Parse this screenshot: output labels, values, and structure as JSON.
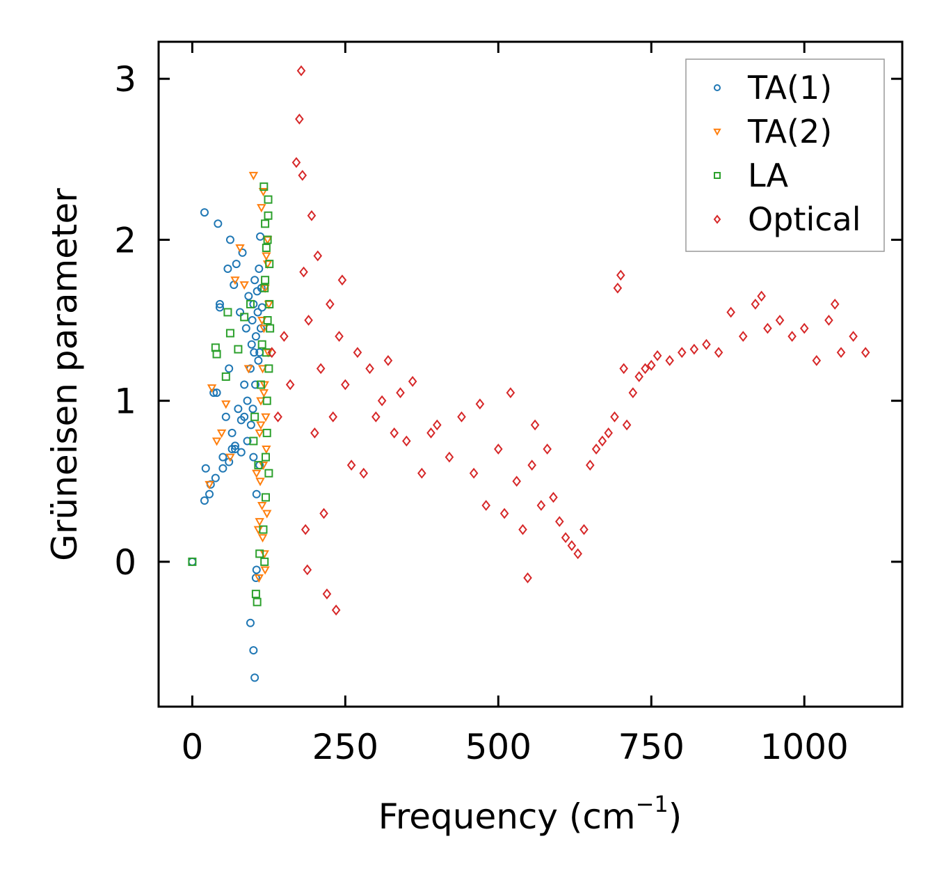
{
  "chart_data": {
    "type": "scatter",
    "title": "",
    "xlabel": "Frequency (cm",
    "xlabel_sup": "−1",
    "xlabel_close": ")",
    "ylabel": "Grüneisen parameter",
    "xlim": [
      -55,
      1160
    ],
    "ylim": [
      -0.9,
      3.23
    ],
    "xticks": [
      0,
      250,
      500,
      750,
      1000
    ],
    "xtick_labels": [
      "0",
      "250",
      "500",
      "750",
      "1000"
    ],
    "yticks": [
      0,
      1,
      2,
      3
    ],
    "ytick_labels": [
      "0",
      "1",
      "2",
      "3"
    ],
    "grid": false,
    "legend_position": "top-right",
    "series": [
      {
        "name": "TA(1)",
        "marker": "circle",
        "color": "#1f77b4",
        "x": [
          0,
          20,
          22,
          28,
          35,
          38,
          42,
          45,
          50,
          55,
          58,
          60,
          62,
          65,
          68,
          70,
          72,
          75,
          78,
          80,
          82,
          85,
          88,
          90,
          92,
          95,
          96,
          97,
          98,
          99,
          100,
          101,
          102,
          103,
          104,
          105,
          106,
          107,
          108,
          109,
          110,
          111,
          112,
          113,
          114,
          20,
          40,
          60,
          80,
          100,
          30,
          50,
          70,
          90,
          110,
          45,
          65,
          85,
          105,
          95,
          100,
          102,
          104
        ],
        "y": [
          0.0,
          2.17,
          0.58,
          0.42,
          1.05,
          0.52,
          2.1,
          1.6,
          0.58,
          0.9,
          1.82,
          0.62,
          2.0,
          0.8,
          1.72,
          0.7,
          1.85,
          0.95,
          1.55,
          0.68,
          1.92,
          1.1,
          1.45,
          0.75,
          1.65,
          1.2,
          0.85,
          1.35,
          1.5,
          0.95,
          1.6,
          1.3,
          1.75,
          1.1,
          1.4,
          0.42,
          1.68,
          1.55,
          1.25,
          1.82,
          0.6,
          2.02,
          1.45,
          1.7,
          1.58,
          0.38,
          1.05,
          1.2,
          0.88,
          0.65,
          0.48,
          0.65,
          0.72,
          1.0,
          1.3,
          1.58,
          0.7,
          0.9,
          -0.05,
          -0.38,
          -0.55,
          -0.72,
          -0.1
        ]
      },
      {
        "name": "TA(2)",
        "marker": "triangle-down",
        "color": "#ff7f0e",
        "x": [
          28,
          32,
          40,
          48,
          55,
          62,
          70,
          78,
          85,
          92,
          100,
          105,
          108,
          110,
          112,
          114,
          115,
          116,
          117,
          118,
          119,
          120,
          121,
          122,
          123,
          124,
          125,
          109,
          111,
          113,
          115,
          117,
          119,
          121,
          123,
          110,
          112,
          114,
          116,
          118
        ],
        "y": [
          0.48,
          1.08,
          0.75,
          0.8,
          0.98,
          0.65,
          1.75,
          1.95,
          1.72,
          1.2,
          2.4,
          0.55,
          0.2,
          0.8,
          1.0,
          0.35,
          1.2,
          0.6,
          1.45,
          0.05,
          1.7,
          0.9,
          1.9,
          0.3,
          2.0,
          1.3,
          1.6,
          -0.1,
          0.5,
          2.2,
          0.15,
          1.05,
          -0.05,
          0.7,
          1.85,
          0.25,
          0.85,
          1.5,
          2.3,
          1.1
        ]
      },
      {
        "name": "LA",
        "marker": "square",
        "color": "#2ca02c",
        "x": [
          0,
          38,
          40,
          55,
          58,
          62,
          75,
          85,
          95,
          100,
          102,
          104,
          106,
          108,
          110,
          112,
          114,
          116,
          117,
          118,
          119,
          120,
          121,
          122,
          123,
          124,
          125,
          126,
          127,
          118,
          120,
          122,
          124,
          126,
          119,
          121,
          123,
          125
        ],
        "y": [
          0.0,
          1.33,
          1.29,
          1.15,
          1.55,
          1.42,
          1.32,
          1.52,
          1.6,
          0.75,
          0.9,
          -0.2,
          -0.25,
          0.6,
          0.05,
          1.1,
          1.35,
          0.2,
          2.33,
          1.7,
          2.1,
          0.4,
          1.95,
          0.8,
          1.5,
          2.25,
          1.2,
          1.85,
          1.45,
          0.0,
          0.65,
          1.0,
          2.15,
          1.6,
          1.75,
          1.3,
          2.0,
          0.55
        ]
      },
      {
        "name": "Optical",
        "marker": "diamond",
        "color": "#d62728",
        "x": [
          130,
          140,
          150,
          160,
          170,
          175,
          178,
          180,
          182,
          185,
          188,
          190,
          195,
          200,
          205,
          210,
          215,
          220,
          225,
          230,
          235,
          240,
          245,
          250,
          260,
          270,
          280,
          290,
          300,
          310,
          320,
          330,
          340,
          350,
          360,
          375,
          390,
          400,
          420,
          440,
          460,
          470,
          480,
          500,
          510,
          520,
          530,
          540,
          548,
          555,
          560,
          570,
          580,
          590,
          600,
          610,
          620,
          630,
          640,
          650,
          660,
          670,
          680,
          690,
          695,
          700,
          705,
          710,
          720,
          730,
          740,
          750,
          760,
          780,
          800,
          820,
          840,
          860,
          880,
          900,
          920,
          930,
          940,
          960,
          980,
          1000,
          1020,
          1040,
          1050,
          1060,
          1080,
          1100
        ],
        "y": [
          1.3,
          0.9,
          1.4,
          1.1,
          2.48,
          2.75,
          3.05,
          2.4,
          1.8,
          0.2,
          -0.05,
          1.5,
          2.15,
          0.8,
          1.9,
          1.2,
          0.3,
          -0.2,
          1.6,
          0.9,
          -0.3,
          1.4,
          1.75,
          1.1,
          0.6,
          1.3,
          0.55,
          1.2,
          0.9,
          1.0,
          1.25,
          0.8,
          1.05,
          0.75,
          1.12,
          0.55,
          0.8,
          0.85,
          0.65,
          0.9,
          0.55,
          0.98,
          0.35,
          0.7,
          0.3,
          1.05,
          0.5,
          0.2,
          -0.1,
          0.6,
          0.85,
          0.35,
          0.7,
          0.4,
          0.25,
          0.15,
          0.1,
          0.05,
          0.2,
          0.6,
          0.7,
          0.75,
          0.8,
          0.9,
          1.7,
          1.78,
          1.2,
          0.85,
          1.05,
          1.15,
          1.2,
          1.22,
          1.28,
          1.25,
          1.3,
          1.32,
          1.35,
          1.3,
          1.55,
          1.4,
          1.6,
          1.65,
          1.45,
          1.5,
          1.4,
          1.45,
          1.25,
          1.5,
          1.6,
          1.3,
          1.4,
          1.3
        ]
      }
    ]
  }
}
